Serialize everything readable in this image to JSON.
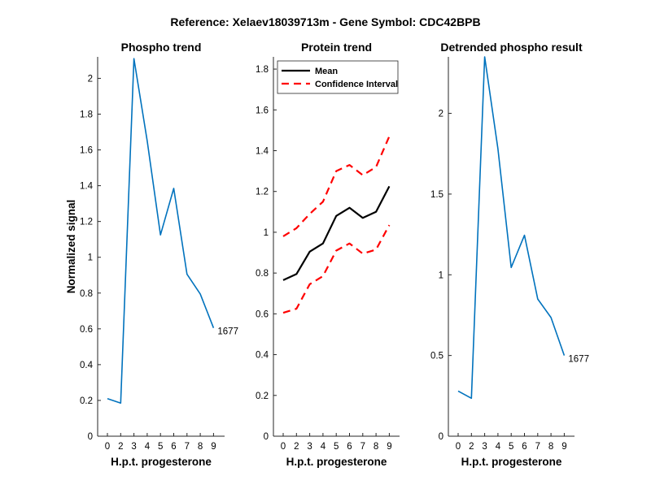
{
  "figure": {
    "suptitle": "Reference:  Xelaev18039713m - Gene Symbol:  CDC42BPB"
  },
  "chart_data": [
    {
      "type": "line",
      "title": "Phospho trend",
      "xlabel": "H.p.t. progesterone",
      "ylabel": "Normalized signal",
      "xlim": [
        -1,
        10
      ],
      "ylim": [
        0,
        2.12
      ],
      "xticks": [
        0,
        2,
        3,
        4,
        5,
        6,
        7,
        8,
        9
      ],
      "yticks": [
        0,
        0.2,
        0.4,
        0.6,
        0.8,
        1,
        1.2,
        1.4,
        1.6,
        1.8,
        2
      ],
      "ytick_labels": [
        "0",
        "0.2",
        "0.4",
        "0.6",
        "0.8",
        "1",
        "1.2",
        "1.4",
        "1.6",
        "1.8",
        "2"
      ],
      "series": [
        {
          "color": "#0072BD",
          "dash": "",
          "x": [
            0,
            1,
            2,
            3,
            4,
            5,
            6,
            7,
            8
          ],
          "y": [
            0.21,
            0.185,
            2.11,
            1.65,
            1.125,
            1.385,
            0.905,
            0.795,
            0.605
          ]
        }
      ],
      "annotation": {
        "text": "1677",
        "x": 8,
        "y": 0.605
      }
    },
    {
      "type": "line",
      "title": "Protein trend",
      "xlabel": "H.p.t. progesterone",
      "ylabel": "",
      "xlim": [
        -1,
        10
      ],
      "ylim": [
        0,
        1.86
      ],
      "xticks": [
        0,
        2,
        3,
        4,
        5,
        6,
        7,
        8,
        9
      ],
      "yticks": [
        0,
        0.2,
        0.4,
        0.6,
        0.8,
        1,
        1.2,
        1.4,
        1.6,
        1.8
      ],
      "ytick_labels": [
        "0",
        "0.2",
        "0.4",
        "0.6",
        "0.8",
        "1",
        "1.2",
        "1.4",
        "1.6",
        "1.8"
      ],
      "legend": {
        "position": "top-left",
        "entries": [
          "Mean",
          "Confidence Interval"
        ]
      },
      "series": [
        {
          "name": "Mean",
          "color": "#000000",
          "dash": "",
          "x": [
            0,
            1,
            2,
            3,
            4,
            5,
            6,
            7,
            8
          ],
          "y": [
            0.765,
            0.795,
            0.905,
            0.945,
            1.08,
            1.12,
            1.07,
            1.1,
            1.225
          ]
        },
        {
          "name": "Confidence Interval",
          "color": "#FF0000",
          "dash": "9,6",
          "x": [
            0,
            1,
            2,
            3,
            4,
            5,
            6,
            7,
            8
          ],
          "y": [
            0.98,
            1.02,
            1.09,
            1.15,
            1.3,
            1.33,
            1.28,
            1.32,
            1.47
          ]
        },
        {
          "color": "#FF0000",
          "dash": "9,6",
          "x": [
            0,
            1,
            2,
            3,
            4,
            5,
            6,
            7,
            8
          ],
          "y": [
            0.605,
            0.625,
            0.745,
            0.785,
            0.91,
            0.945,
            0.895,
            0.915,
            1.035
          ]
        }
      ]
    },
    {
      "type": "line",
      "title": "Detrended phospho result",
      "xlabel": "H.p.t. progesterone",
      "ylabel": "",
      "xlim": [
        -1,
        10
      ],
      "ylim": [
        0,
        2.35
      ],
      "xticks": [
        0,
        2,
        3,
        4,
        5,
        6,
        7,
        8,
        9
      ],
      "yticks": [
        0,
        0.5,
        1,
        1.5,
        2
      ],
      "ytick_labels": [
        "0",
        "0.5",
        "1",
        "1.5",
        "2"
      ],
      "series": [
        {
          "color": "#0072BD",
          "dash": "",
          "x": [
            0,
            1,
            2,
            3,
            4,
            5,
            6,
            7,
            8
          ],
          "y": [
            0.28,
            0.235,
            2.35,
            1.78,
            1.045,
            1.245,
            0.85,
            0.735,
            0.5
          ]
        }
      ],
      "annotation": {
        "text": "1677",
        "x": 8,
        "y": 0.5
      }
    }
  ]
}
